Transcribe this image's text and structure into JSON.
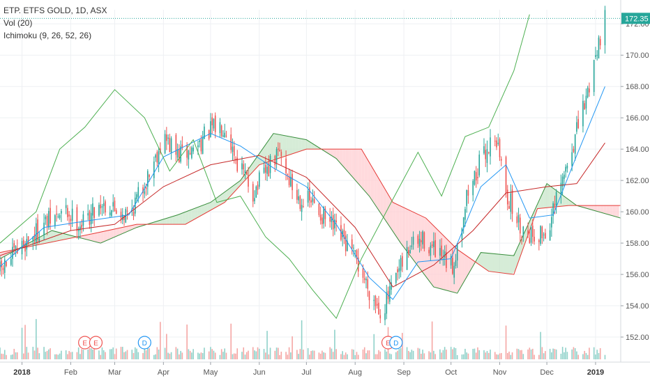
{
  "header": {
    "title": "ETP. ETFS GOLD, 1D, ASX",
    "indicators": [
      "Vol (20)",
      "Ichimoku (9, 26, 52, 26)"
    ]
  },
  "colors": {
    "up": "#26a69a",
    "down": "#ef5350",
    "vol_up": "#8fd1c9",
    "vol_down": "#f5a6a4",
    "conversion": "#2196f3",
    "base": "#c62828",
    "lagging": "#4caf50",
    "cloud_green": "#c8e6c9",
    "cloud_red": "#ffcdd2",
    "span_a": "#388e3c",
    "span_b": "#e53935",
    "price_line": "#26a69a",
    "marker_e": "#ef5350",
    "marker_d": "#2196f3"
  },
  "last_price": "172.35",
  "chart_data": {
    "type": "candlestick",
    "title": "ETP. ETFS GOLD, 1D, ASX",
    "y_ticks": [
      "152.00",
      "154.00",
      "156.00",
      "158.00",
      "160.00",
      "162.00",
      "164.00",
      "166.00",
      "168.00",
      "170.00",
      "172.00"
    ],
    "ylim": [
      150.4,
      172.9
    ],
    "x_ticks": [
      {
        "label": "2018",
        "x": "2018-01-01"
      },
      {
        "label": "Feb",
        "x": "2018-02-01"
      },
      {
        "label": "Mar",
        "x": "2018-03-01"
      },
      {
        "label": "Apr",
        "x": "2018-04-01"
      },
      {
        "label": "May",
        "x": "2018-05-01"
      },
      {
        "label": "Jun",
        "x": "2018-06-01"
      },
      {
        "label": "Jul",
        "x": "2018-07-01"
      },
      {
        "label": "Aug",
        "x": "2018-08-01"
      },
      {
        "label": "Sep",
        "x": "2018-09-01"
      },
      {
        "label": "Oct",
        "x": "2018-10-01"
      },
      {
        "label": "Nov",
        "x": "2018-11-01"
      },
      {
        "label": "Dec",
        "x": "2018-12-01"
      },
      {
        "label": "2019",
        "x": "2019-01-01"
      }
    ],
    "xlim": [
      "2017-12-18",
      "2019-01-17"
    ],
    "price_path": [
      [
        "2017-12-18",
        156.2
      ],
      [
        "2018-01-01",
        157.8
      ],
      [
        "2018-01-15",
        159.2
      ],
      [
        "2018-01-29",
        160.0
      ],
      [
        "2018-02-08",
        159.2
      ],
      [
        "2018-02-20",
        160.6
      ],
      [
        "2018-03-01",
        160.2
      ],
      [
        "2018-03-10",
        159.8
      ],
      [
        "2018-03-20",
        161.8
      ],
      [
        "2018-04-01",
        164.8
      ],
      [
        "2018-04-10",
        163.6
      ],
      [
        "2018-04-18",
        163.8
      ],
      [
        "2018-05-01",
        165.2
      ],
      [
        "2018-05-10",
        165.6
      ],
      [
        "2018-05-18",
        163.2
      ],
      [
        "2018-05-28",
        161.2
      ],
      [
        "2018-06-06",
        162.6
      ],
      [
        "2018-06-14",
        163.8
      ],
      [
        "2018-06-24",
        161.0
      ],
      [
        "2018-07-04",
        160.6
      ],
      [
        "2018-07-14",
        159.4
      ],
      [
        "2018-07-24",
        158.2
      ],
      [
        "2018-08-02",
        156.8
      ],
      [
        "2018-08-12",
        154.6
      ],
      [
        "2018-08-18",
        153.6
      ],
      [
        "2018-08-26",
        155.4
      ],
      [
        "2018-09-05",
        157.8
      ],
      [
        "2018-09-14",
        158.2
      ],
      [
        "2018-09-24",
        157.0
      ],
      [
        "2018-10-02",
        156.4
      ],
      [
        "2018-10-11",
        161.0
      ],
      [
        "2018-10-20",
        163.2
      ],
      [
        "2018-10-29",
        165.0
      ],
      [
        "2018-11-06",
        161.0
      ],
      [
        "2018-11-14",
        159.0
      ],
      [
        "2018-11-22",
        158.6
      ],
      [
        "2018-12-01",
        158.6
      ],
      [
        "2018-12-10",
        161.6
      ],
      [
        "2018-12-18",
        164.4
      ],
      [
        "2018-12-26",
        167.2
      ],
      [
        "2019-01-02",
        170.6
      ],
      [
        "2019-01-07",
        172.35
      ]
    ],
    "ichimoku": {
      "conversion": [
        [
          "2017-12-18",
          156.5
        ],
        [
          "2018-01-15",
          159.0
        ],
        [
          "2018-02-10",
          159.4
        ],
        [
          "2018-03-10",
          159.8
        ],
        [
          "2018-04-01",
          163.5
        ],
        [
          "2018-05-01",
          165.0
        ],
        [
          "2018-05-20",
          164.2
        ],
        [
          "2018-06-10",
          162.8
        ],
        [
          "2018-07-01",
          161.6
        ],
        [
          "2018-07-20",
          159.2
        ],
        [
          "2018-08-10",
          155.8
        ],
        [
          "2018-08-25",
          154.4
        ],
        [
          "2018-09-10",
          156.8
        ],
        [
          "2018-10-01",
          157.0
        ],
        [
          "2018-10-20",
          161.6
        ],
        [
          "2018-11-05",
          163.0
        ],
        [
          "2018-11-20",
          159.6
        ],
        [
          "2018-12-05",
          159.8
        ],
        [
          "2018-12-20",
          163.6
        ],
        [
          "2019-01-07",
          168.0
        ]
      ],
      "base": [
        [
          "2017-12-18",
          157.2
        ],
        [
          "2018-02-01",
          158.8
        ],
        [
          "2018-03-01",
          159.2
        ],
        [
          "2018-04-01",
          161.6
        ],
        [
          "2018-05-01",
          163.0
        ],
        [
          "2018-06-01",
          163.6
        ],
        [
          "2018-07-01",
          162.2
        ],
        [
          "2018-08-01",
          159.0
        ],
        [
          "2018-08-25",
          155.2
        ],
        [
          "2018-09-20",
          156.6
        ],
        [
          "2018-10-15",
          158.8
        ],
        [
          "2018-11-05",
          161.2
        ],
        [
          "2018-12-01",
          161.6
        ],
        [
          "2018-12-20",
          161.8
        ],
        [
          "2019-01-07",
          164.4
        ]
      ],
      "lagging": [
        [
          "2017-12-18",
          158.0
        ],
        [
          "2018-01-10",
          160.0
        ],
        [
          "2018-01-25",
          164.0
        ],
        [
          "2018-02-10",
          165.4
        ],
        [
          "2018-03-01",
          167.8
        ],
        [
          "2018-03-20",
          166.0
        ],
        [
          "2018-04-05",
          162.6
        ],
        [
          "2018-04-20",
          164.6
        ],
        [
          "2018-05-05",
          160.6
        ],
        [
          "2018-05-20",
          161.0
        ],
        [
          "2018-06-05",
          158.4
        ],
        [
          "2018-06-20",
          157.0
        ],
        [
          "2018-07-05",
          155.0
        ],
        [
          "2018-07-20",
          153.2
        ],
        [
          "2018-08-05",
          157.0
        ],
        [
          "2018-08-25",
          160.8
        ],
        [
          "2018-09-10",
          163.8
        ],
        [
          "2018-09-25",
          161.0
        ],
        [
          "2018-10-10",
          164.8
        ],
        [
          "2018-10-25",
          165.4
        ],
        [
          "2018-11-10",
          169.0
        ],
        [
          "2018-11-20",
          172.6
        ]
      ],
      "span_a": [
        [
          "2017-12-18",
          157.0
        ],
        [
          "2018-01-20",
          158.8
        ],
        [
          "2018-02-20",
          158.0
        ],
        [
          "2018-03-15",
          159.0
        ],
        [
          "2018-04-10",
          159.8
        ],
        [
          "2018-05-01",
          160.6
        ],
        [
          "2018-05-20",
          162.0
        ],
        [
          "2018-06-10",
          165.0
        ],
        [
          "2018-07-01",
          164.6
        ],
        [
          "2018-07-20",
          163.4
        ],
        [
          "2018-08-10",
          161.0
        ],
        [
          "2018-08-30",
          158.0
        ],
        [
          "2018-09-20",
          155.2
        ],
        [
          "2018-10-05",
          154.8
        ],
        [
          "2018-10-20",
          157.4
        ],
        [
          "2018-11-10",
          157.2
        ],
        [
          "2018-12-01",
          161.8
        ],
        [
          "2018-12-20",
          160.4
        ],
        [
          "2019-01-17",
          159.6
        ]
      ],
      "span_b": [
        [
          "2017-12-18",
          157.4
        ],
        [
          "2018-02-15",
          158.6
        ],
        [
          "2018-03-15",
          159.2
        ],
        [
          "2018-04-15",
          159.2
        ],
        [
          "2018-05-10",
          160.6
        ],
        [
          "2018-06-01",
          163.0
        ],
        [
          "2018-07-01",
          164.0
        ],
        [
          "2018-07-20",
          164.0
        ],
        [
          "2018-08-05",
          164.0
        ],
        [
          "2018-08-25",
          160.6
        ],
        [
          "2018-09-15",
          159.6
        ],
        [
          "2018-10-05",
          157.6
        ],
        [
          "2018-10-25",
          156.2
        ],
        [
          "2018-11-10",
          156.0
        ],
        [
          "2018-11-25",
          160.2
        ],
        [
          "2018-12-15",
          160.4
        ],
        [
          "2019-01-17",
          160.4
        ]
      ]
    },
    "events": [
      {
        "label": "E",
        "x": "2018-02-10",
        "type": "earnings"
      },
      {
        "label": "E",
        "x": "2018-02-17",
        "type": "earnings"
      },
      {
        "label": "D",
        "x": "2018-03-20",
        "type": "dividend"
      },
      {
        "label": "E",
        "x": "2018-08-22",
        "type": "earnings"
      },
      {
        "label": "D",
        "x": "2018-08-27",
        "type": "dividend"
      }
    ]
  }
}
